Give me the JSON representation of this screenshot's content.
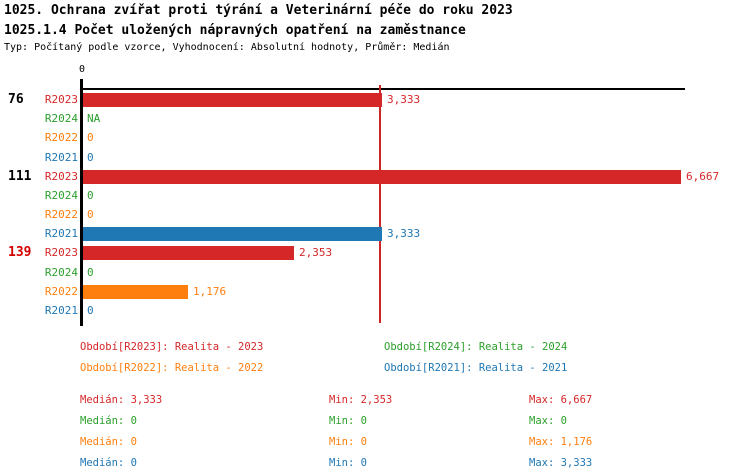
{
  "header": {
    "title": "1025. Ochrana zvířat proti týrání a Veterinární péče do roku 2023",
    "subtitle": "1025.1.4 Počet uložených nápravných opatření na zaměstnance",
    "meta": "Typ: Počítaný podle vzorce, Vyhodnocení: Absolutní hodnoty, Průměr: Medián"
  },
  "colors": {
    "r2023": "#d62728",
    "r2024": "#2ca02c",
    "r2022": "#ff7f0e",
    "r2021": "#1f77b4",
    "axis": "#000000",
    "median_line": "#cc2525",
    "group_label_default": "#000000",
    "group_label_highlight": "#d40000"
  },
  "chart_data": {
    "type": "bar",
    "orientation": "horizontal",
    "axis_zero_label": "0",
    "xlim": [
      0,
      6.73
    ],
    "median_line_value": 3.333,
    "grid": false,
    "legend_position": "bottom",
    "groups": [
      {
        "label": "76",
        "label_color": "#000000",
        "rows": [
          {
            "series": "R2023",
            "value": 3.333,
            "display": "3,333",
            "color": "#d62728"
          },
          {
            "series": "R2024",
            "value": null,
            "display": "NA",
            "color": "#2ca02c"
          },
          {
            "series": "R2022",
            "value": 0,
            "display": "0",
            "color": "#ff7f0e"
          },
          {
            "series": "R2021",
            "value": 0,
            "display": "0",
            "color": "#1f77b4"
          }
        ]
      },
      {
        "label": "111",
        "label_color": "#000000",
        "rows": [
          {
            "series": "R2023",
            "value": 6.667,
            "display": "6,667",
            "color": "#d62728"
          },
          {
            "series": "R2024",
            "value": 0,
            "display": "0",
            "color": "#2ca02c"
          },
          {
            "series": "R2022",
            "value": 0,
            "display": "0",
            "color": "#ff7f0e"
          },
          {
            "series": "R2021",
            "value": 3.333,
            "display": "3,333",
            "color": "#1f77b4"
          }
        ]
      },
      {
        "label": "139",
        "label_color": "#d40000",
        "rows": [
          {
            "series": "R2023",
            "value": 2.353,
            "display": "2,353",
            "color": "#d62728"
          },
          {
            "series": "R2024",
            "value": 0,
            "display": "0",
            "color": "#2ca02c"
          },
          {
            "series": "R2022",
            "value": 1.176,
            "display": "1,176",
            "color": "#ff7f0e"
          },
          {
            "series": "R2021",
            "value": 0,
            "display": "0",
            "color": "#1f77b4"
          }
        ]
      }
    ],
    "legend": [
      {
        "label": "Období[R2023]: Realita - 2023",
        "color": "#d62728"
      },
      {
        "label": "Období[R2024]: Realita - 2024",
        "color": "#2ca02c"
      },
      {
        "label": "Období[R2022]: Realita - 2022",
        "color": "#ff7f0e"
      },
      {
        "label": "Období[R2021]: Realita - 2021",
        "color": "#1f77b4"
      }
    ],
    "stats": [
      {
        "color": "#d62728",
        "cells": [
          "Medián: 3,333",
          "Min: 2,353",
          "Max: 6,667"
        ]
      },
      {
        "color": "#2ca02c",
        "cells": [
          "Medián: 0",
          "Min: 0",
          "Max: 0"
        ]
      },
      {
        "color": "#ff7f0e",
        "cells": [
          "Medián: 0",
          "Min: 0",
          "Max: 1,176"
        ]
      },
      {
        "color": "#1f77b4",
        "cells": [
          "Medián: 0",
          "Min: 0",
          "Max: 3,333"
        ]
      }
    ]
  }
}
